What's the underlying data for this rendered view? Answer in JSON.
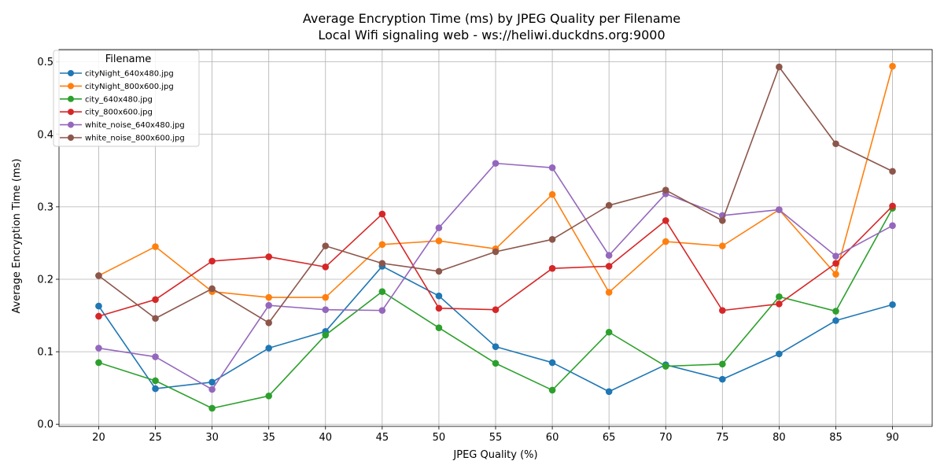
{
  "chart_data": {
    "type": "line",
    "title": "Average Encryption Time (ms) by JPEG Quality per Filename",
    "subtitle": "Local Wifi signaling web - ws://heliwi.duckdns.org:9000",
    "xlabel": "JPEG Quality (%)",
    "ylabel": "Average Encryption Time (ms)",
    "x": [
      20,
      25,
      30,
      35,
      40,
      45,
      50,
      55,
      60,
      65,
      70,
      75,
      80,
      85,
      90
    ],
    "xlim": [
      16.5,
      93.5
    ],
    "ylim": [
      -0.003,
      0.517
    ],
    "yticks": [
      "0.0",
      "0.1",
      "0.2",
      "0.3",
      "0.4",
      "0.5"
    ],
    "ytick_values": [
      0.0,
      0.1,
      0.2,
      0.3,
      0.4,
      0.5
    ],
    "grid": true,
    "marker": "circle",
    "legend": {
      "title": "Filename",
      "placement": "top-left"
    },
    "series": [
      {
        "name": "cityNight_640x480.jpg",
        "color": "#1f77b4",
        "values": [
          0.163,
          0.049,
          0.058,
          0.105,
          0.128,
          0.218,
          0.177,
          0.107,
          0.085,
          0.045,
          0.082,
          0.062,
          0.097,
          0.143,
          0.165
        ]
      },
      {
        "name": "cityNight_800x600.jpg",
        "color": "#ff7f0e",
        "values": [
          0.205,
          0.245,
          0.183,
          0.175,
          0.175,
          0.248,
          0.253,
          0.242,
          0.317,
          0.182,
          0.252,
          0.246,
          0.296,
          0.207,
          0.494
        ]
      },
      {
        "name": "city_640x480.jpg",
        "color": "#2ca02c",
        "values": [
          0.085,
          0.06,
          0.022,
          0.039,
          0.123,
          0.183,
          0.133,
          0.084,
          0.047,
          0.127,
          0.08,
          0.083,
          0.176,
          0.156,
          0.298
        ]
      },
      {
        "name": "city_800x600.jpg",
        "color": "#d62728",
        "values": [
          0.149,
          0.172,
          0.225,
          0.231,
          0.217,
          0.29,
          0.16,
          0.158,
          0.215,
          0.218,
          0.281,
          0.157,
          0.166,
          0.222,
          0.301
        ]
      },
      {
        "name": "white_noise_640x480.jpg",
        "color": "#9467bd",
        "values": [
          0.105,
          0.093,
          0.048,
          0.164,
          0.158,
          0.157,
          0.271,
          0.36,
          0.354,
          0.233,
          0.318,
          0.288,
          0.296,
          0.232,
          0.274
        ]
      },
      {
        "name": "white_noise_800x600.jpg",
        "color": "#8c564b",
        "values": [
          0.205,
          0.146,
          0.187,
          0.14,
          0.246,
          0.222,
          0.211,
          0.238,
          0.255,
          0.302,
          0.323,
          0.281,
          0.493,
          0.387,
          0.349
        ]
      }
    ]
  }
}
